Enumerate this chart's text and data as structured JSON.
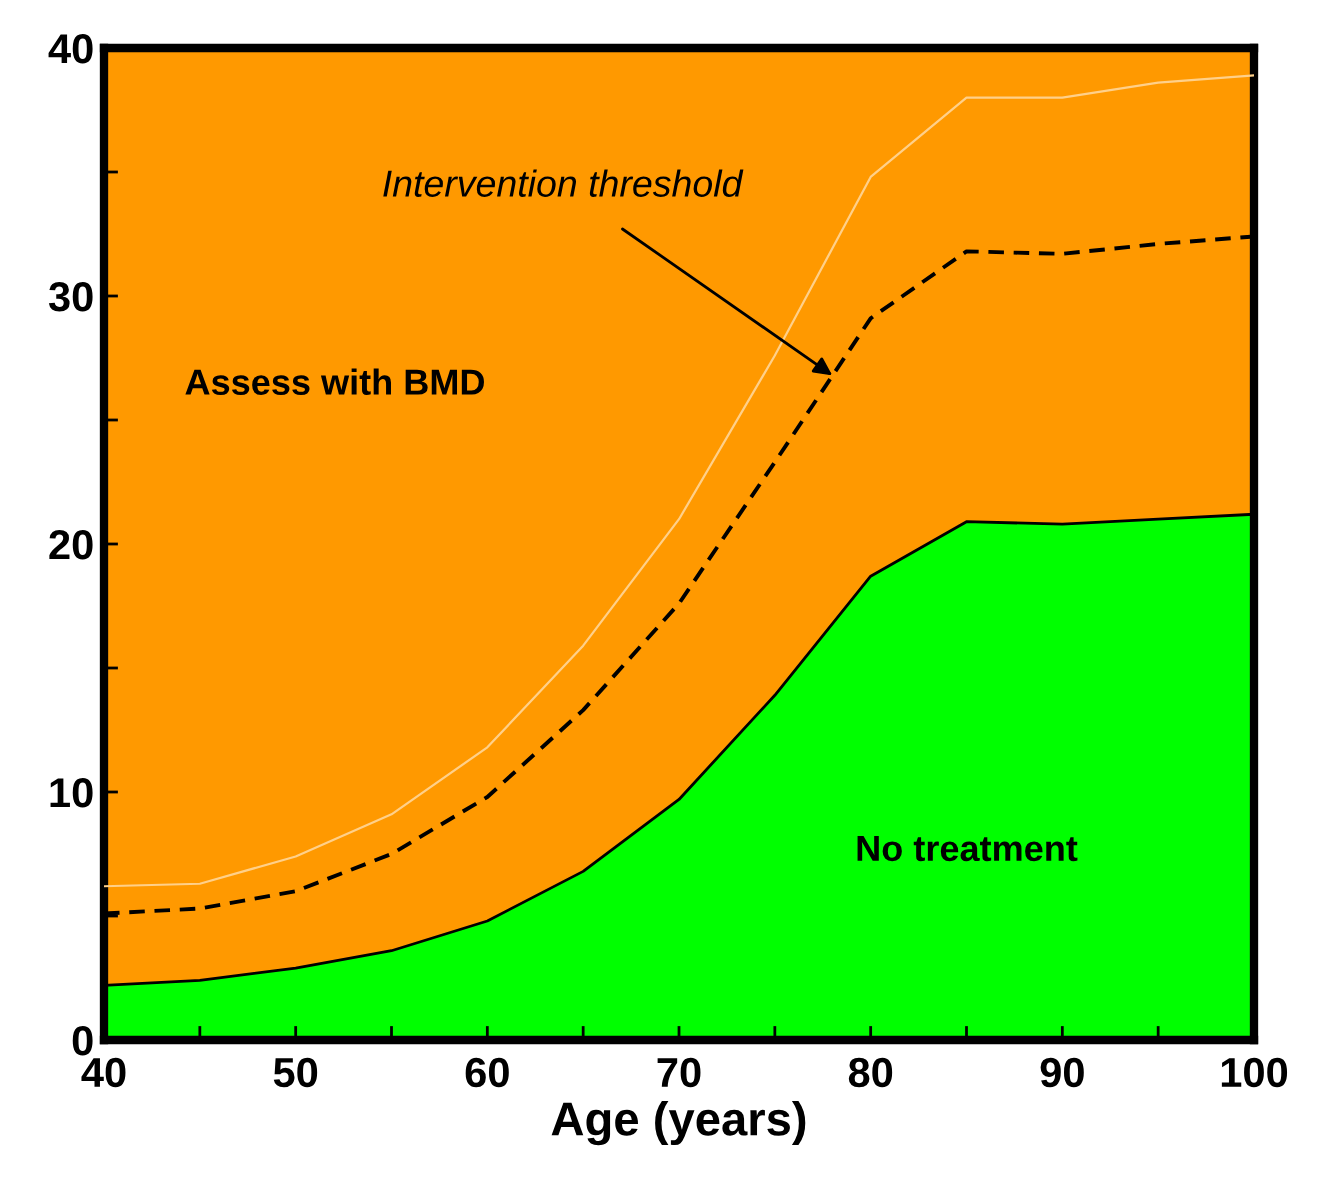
{
  "chart_data": {
    "type": "area",
    "xlabel": "Age (years)",
    "x": [
      40,
      45,
      50,
      55,
      60,
      65,
      70,
      75,
      80,
      85,
      90,
      95,
      100
    ],
    "series": [
      {
        "name": "No treatment",
        "color": "#00ff00",
        "values": [
          2.2,
          2.4,
          2.9,
          3.6,
          4.8,
          6.8,
          9.7,
          13.9,
          18.7,
          20.9,
          20.8,
          21.0,
          21.2
        ]
      },
      {
        "type": "line",
        "color": "#000000",
        "line_style": "dashed",
        "values": [
          5.1,
          5.3,
          6.0,
          7.5,
          9.8,
          13.3,
          17.6,
          23.3,
          29.1,
          31.8,
          31.7,
          32.1,
          32.4
        ]
      },
      {
        "type": "line",
        "color": "#ffd08a",
        "line_style": "solid",
        "values": [
          6.2,
          6.3,
          7.4,
          9.1,
          11.8,
          15.9,
          21.0,
          27.6,
          34.8,
          38.0,
          38.0,
          38.6,
          38.9
        ]
      }
    ],
    "bands": [
      {
        "axis": "y",
        "from": 0,
        "to": 40,
        "label": "Assess with BMD",
        "color": "#ff9900"
      }
    ],
    "annotations": [
      {
        "text": "Intervention threshold",
        "x": 78,
        "y": 26.8
      }
    ],
    "xlim": [
      40,
      100
    ],
    "ylim": [
      0,
      40
    ],
    "xticks": [
      40,
      {
        "value": 45,
        "label": null
      },
      50,
      {
        "value": 55,
        "label": null
      },
      60,
      {
        "value": 65,
        "label": null
      },
      70,
      {
        "value": 75,
        "label": null
      },
      80,
      {
        "value": 85,
        "label": null
      },
      90,
      {
        "value": 95,
        "label": null
      },
      100
    ],
    "yticks": [
      0,
      {
        "value": 5,
        "label": null
      },
      10,
      {
        "value": 15,
        "label": null
      },
      20,
      {
        "value": 25,
        "label": null
      },
      30,
      {
        "value": 35,
        "label": null
      },
      40
    ],
    "grid": false,
    "legend": false
  }
}
